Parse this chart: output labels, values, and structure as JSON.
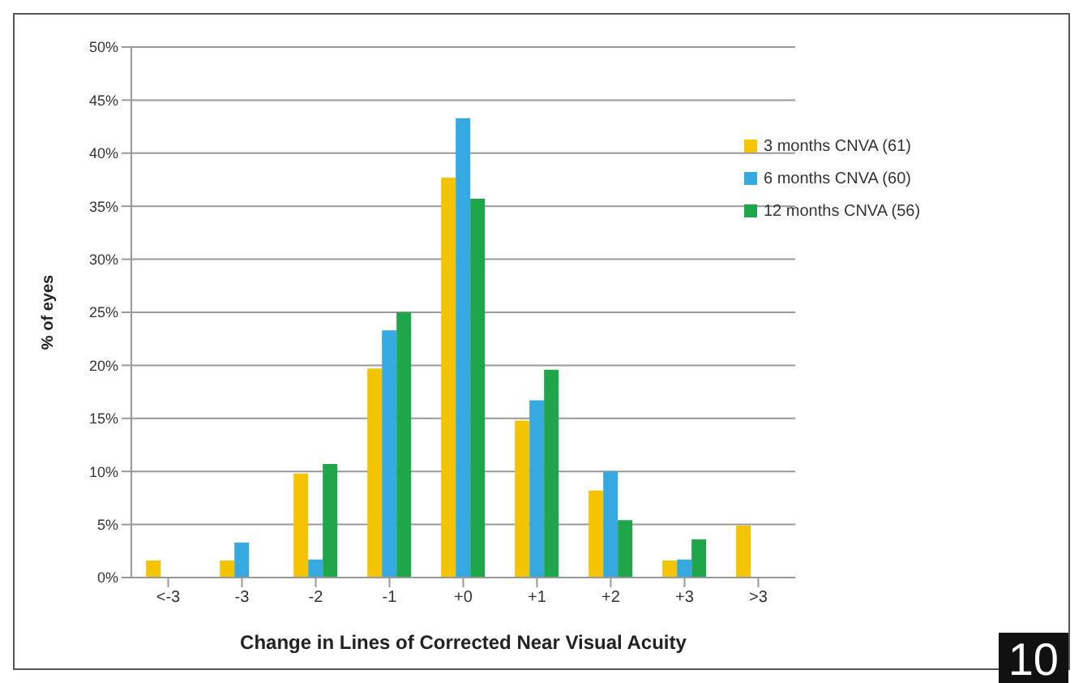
{
  "chart_data": {
    "type": "bar",
    "xlabel": "Change in Lines of Corrected Near Visual Acuity",
    "ylabel": "% of eyes",
    "categories": [
      "<-3",
      "-3",
      "-2",
      "-1",
      "+0",
      "+1",
      "+2",
      "+3",
      ">3"
    ],
    "series": [
      {
        "name": "3 months CNVA (61)",
        "color": "#f5c400",
        "values": [
          1.6,
          1.6,
          9.8,
          19.7,
          37.7,
          14.8,
          8.2,
          1.6,
          4.9
        ]
      },
      {
        "name": "6 months CNVA (60)",
        "color": "#36a9e1",
        "values": [
          null,
          3.3,
          1.7,
          23.3,
          43.3,
          16.7,
          10,
          1.7,
          null
        ]
      },
      {
        "name": "12 months CNVA (56)",
        "color": "#1fa64a",
        "values": [
          null,
          null,
          10.7,
          25,
          35.7,
          19.6,
          5.4,
          3.6,
          null
        ]
      }
    ],
    "ylim": [
      0,
      50
    ],
    "yticks": [
      {
        "value": 0,
        "label": "0%"
      },
      {
        "value": 5,
        "label": "5%"
      },
      {
        "value": 10,
        "label": "10%"
      },
      {
        "value": 15,
        "label": "15%"
      },
      {
        "value": 20,
        "label": "20%"
      },
      {
        "value": 25,
        "label": "25%"
      },
      {
        "value": 30,
        "label": "30%"
      },
      {
        "value": 35,
        "label": "35%"
      },
      {
        "value": 40,
        "label": "40%"
      },
      {
        "value": 45,
        "label": "45%"
      },
      {
        "value": 50,
        "label": "50%"
      }
    ],
    "grid": "y",
    "legend": "top right",
    "annotations": [
      "10"
    ]
  }
}
